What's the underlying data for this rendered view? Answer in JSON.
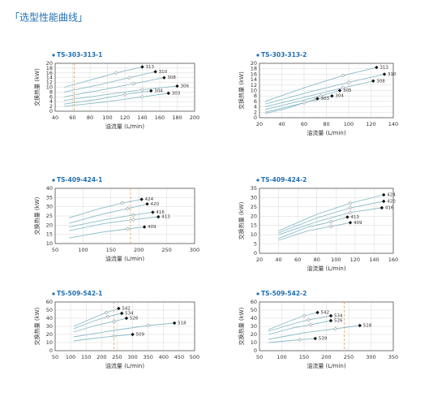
{
  "header": "「选型性能曲线」",
  "chart_data": [
    {
      "type": "line",
      "title": "TS-303-313-1",
      "x_label": "油流量 (L/min)",
      "y_label": "交换热量 (kW)",
      "xlim": [
        40,
        200
      ],
      "xticks": [
        40,
        60,
        80,
        100,
        120,
        140,
        160,
        180,
        200
      ],
      "ylim": [
        0,
        20
      ],
      "yticks": [
        0,
        2,
        4,
        6,
        8,
        10,
        12,
        14,
        16,
        18,
        20
      ],
      "grid": true,
      "vline": 62,
      "series": [
        {
          "name": "313",
          "color": "#8bbcc9",
          "x": [
            50,
            80,
            110,
            140
          ],
          "values": [
            10,
            13,
            16,
            18.5
          ]
        },
        {
          "name": "310",
          "color": "#8bbcc9",
          "x": [
            50,
            90,
            125,
            155
          ],
          "values": [
            8,
            11,
            14,
            16.5
          ]
        },
        {
          "name": "308",
          "color": "#8bbcc9",
          "x": [
            50,
            95,
            130,
            165
          ],
          "values": [
            6,
            9,
            11.5,
            14
          ]
        },
        {
          "name": "306",
          "color": "#8bbcc9",
          "x": [
            50,
            100,
            140,
            180
          ],
          "values": [
            4.5,
            7,
            9,
            10.5
          ]
        },
        {
          "name": "304",
          "color": "#8bbcc9",
          "x": [
            50,
            90,
            120,
            150
          ],
          "values": [
            3,
            5,
            7,
            8.5
          ]
        },
        {
          "name": "303",
          "color": "#8bbcc9",
          "x": [
            50,
            100,
            140,
            170
          ],
          "values": [
            2,
            4,
            6,
            7.5
          ]
        }
      ]
    },
    {
      "type": "line",
      "title": "TS-303-313-2",
      "x_label": "油流量 (L/min)",
      "y_label": "交换热量 (kW)",
      "xlim": [
        20,
        140
      ],
      "xticks": [
        20,
        40,
        60,
        80,
        100,
        120,
        140
      ],
      "ylim": [
        0,
        20
      ],
      "yticks": [
        0,
        2,
        4,
        6,
        8,
        10,
        12,
        14,
        16,
        18,
        20
      ],
      "grid": true,
      "series": [
        {
          "name": "313",
          "color": "#8bbcc9",
          "x": [
            25,
            60,
            95,
            125
          ],
          "values": [
            6,
            11,
            15.5,
            18.5
          ]
        },
        {
          "name": "310",
          "color": "#8bbcc9",
          "x": [
            25,
            65,
            100,
            132
          ],
          "values": [
            5,
            9.5,
            13,
            16
          ]
        },
        {
          "name": "308",
          "color": "#8bbcc9",
          "x": [
            25,
            65,
            95,
            122
          ],
          "values": [
            4,
            8,
            11,
            13.5
          ]
        },
        {
          "name": "305",
          "color": "#8bbcc9",
          "x": [
            25,
            55,
            75,
            92
          ],
          "values": [
            3,
            6,
            8,
            10
          ]
        },
        {
          "name": "304",
          "color": "#8bbcc9",
          "x": [
            25,
            50,
            70,
            85
          ],
          "values": [
            2,
            4.5,
            6.5,
            8
          ]
        },
        {
          "name": "303",
          "color": "#8bbcc9",
          "x": [
            25,
            45,
            60,
            72
          ],
          "values": [
            1.5,
            3.5,
            5.5,
            7
          ]
        }
      ]
    },
    {
      "type": "line",
      "title": "TS-409-424-1",
      "x_label": "油流量 (L/min)",
      "y_label": "交换热量 (kW)",
      "xlim": [
        50,
        300
      ],
      "xticks": [
        50,
        100,
        150,
        200,
        250,
        300
      ],
      "ylim": [
        10,
        40
      ],
      "yticks": [
        10,
        15,
        20,
        25,
        30,
        35,
        40
      ],
      "grid": true,
      "vline": 185,
      "series": [
        {
          "name": "424",
          "color": "#8bbcc9",
          "x": [
            75,
            130,
            170,
            205
          ],
          "values": [
            24,
            29,
            32,
            34
          ]
        },
        {
          "name": "420",
          "color": "#8bbcc9",
          "x": [
            75,
            135,
            180,
            215
          ],
          "values": [
            21,
            26,
            29,
            31.5
          ]
        },
        {
          "name": "416",
          "color": "#8bbcc9",
          "x": [
            75,
            140,
            190,
            225
          ],
          "values": [
            19,
            23,
            25.5,
            27
          ]
        },
        {
          "name": "413",
          "color": "#8bbcc9",
          "x": [
            75,
            140,
            190,
            235
          ],
          "values": [
            17,
            21,
            23,
            24.5
          ]
        },
        {
          "name": "409",
          "color": "#8bbcc9",
          "x": [
            75,
            130,
            180,
            210
          ],
          "values": [
            13,
            16,
            18,
            19
          ]
        }
      ]
    },
    {
      "type": "line",
      "title": "TS-409-424-2",
      "x_label": "油流量 (L/min)",
      "y_label": "交换热量 (kW)",
      "xlim": [
        20,
        160
      ],
      "xticks": [
        20,
        40,
        60,
        80,
        100,
        120,
        140,
        160
      ],
      "ylim": [
        0,
        35
      ],
      "yticks": [
        0,
        5,
        10,
        15,
        20,
        25,
        30,
        35
      ],
      "grid": true,
      "series": [
        {
          "name": "424",
          "color": "#8bbcc9",
          "x": [
            40,
            80,
            115,
            150
          ],
          "values": [
            12,
            21,
            27,
            31.5
          ]
        },
        {
          "name": "420",
          "color": "#8bbcc9",
          "x": [
            40,
            80,
            115,
            150
          ],
          "values": [
            11,
            19,
            24.5,
            28
          ]
        },
        {
          "name": "416",
          "color": "#8bbcc9",
          "x": [
            40,
            80,
            115,
            148
          ],
          "values": [
            10,
            17,
            22,
            24.5
          ]
        },
        {
          "name": "413",
          "color": "#8bbcc9",
          "x": [
            40,
            70,
            95,
            112
          ],
          "values": [
            8,
            14,
            17,
            19.5
          ]
        },
        {
          "name": "409",
          "color": "#8bbcc9",
          "x": [
            40,
            70,
            95,
            115
          ],
          "values": [
            7,
            12,
            14.5,
            16.5
          ]
        }
      ]
    },
    {
      "type": "line",
      "title": "TS-509-542-1",
      "x_label": "油流量 (L/min)",
      "y_label": "交换热量 (kW)",
      "xlim": [
        50,
        500
      ],
      "xticks": [
        50,
        100,
        150,
        200,
        250,
        300,
        350,
        400,
        450,
        500
      ],
      "ylim": [
        0,
        60
      ],
      "yticks": [
        0,
        10,
        20,
        30,
        40,
        50,
        60
      ],
      "grid": true,
      "vline": 240,
      "series": [
        {
          "name": "542",
          "color": "#8bbcc9",
          "x": [
            110,
            170,
            215,
            255
          ],
          "values": [
            30,
            40,
            47,
            52
          ]
        },
        {
          "name": "534",
          "color": "#8bbcc9",
          "x": [
            110,
            170,
            220,
            265
          ],
          "values": [
            27,
            36,
            42,
            46
          ]
        },
        {
          "name": "526",
          "color": "#8bbcc9",
          "x": [
            110,
            180,
            240,
            280
          ],
          "values": [
            23,
            31,
            36,
            40
          ]
        },
        {
          "name": "518",
          "color": "#8bbcc9",
          "x": [
            110,
            240,
            350,
            435
          ],
          "values": [
            17,
            25,
            31,
            34
          ]
        },
        {
          "name": "509",
          "color": "#8bbcc9",
          "x": [
            110,
            170,
            240,
            300
          ],
          "values": [
            12,
            15,
            18,
            20
          ]
        }
      ]
    },
    {
      "type": "line",
      "title": "TS-509-542-2",
      "x_label": "油流量 (L/min)",
      "y_label": "交换热量 (kW)",
      "xlim": [
        50,
        350
      ],
      "xticks": [
        50,
        100,
        150,
        200,
        250,
        300,
        350
      ],
      "ylim": [
        0,
        60
      ],
      "yticks": [
        0,
        10,
        20,
        30,
        40,
        50,
        60
      ],
      "grid": true,
      "vline": 240,
      "series": [
        {
          "name": "542",
          "color": "#8bbcc9",
          "x": [
            70,
            120,
            150,
            180
          ],
          "values": [
            26,
            37,
            43,
            47
          ]
        },
        {
          "name": "534",
          "color": "#8bbcc9",
          "x": [
            70,
            125,
            160,
            210
          ],
          "values": [
            24,
            33,
            38,
            43
          ]
        },
        {
          "name": "526",
          "color": "#8bbcc9",
          "x": [
            70,
            125,
            165,
            210
          ],
          "values": [
            20,
            28,
            32,
            37
          ]
        },
        {
          "name": "518",
          "color": "#8bbcc9",
          "x": [
            70,
            150,
            220,
            275
          ],
          "values": [
            14,
            22,
            27,
            31
          ]
        },
        {
          "name": "539",
          "color": "#8bbcc9",
          "x": [
            70,
            110,
            140,
            175
          ],
          "values": [
            10,
            12,
            13.5,
            15
          ]
        }
      ]
    }
  ]
}
